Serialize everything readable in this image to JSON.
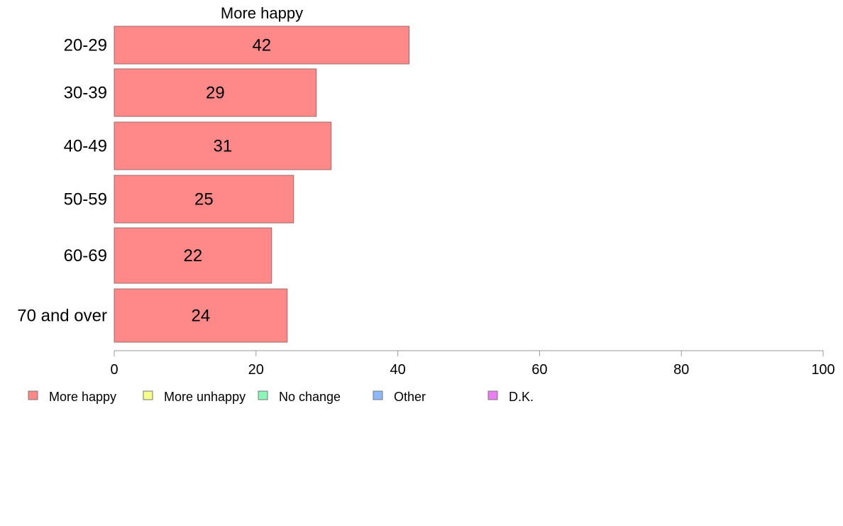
{
  "chart_data": {
    "type": "bar",
    "orientation": "horizontal",
    "panel_title": "More happy",
    "categories": [
      "20-29",
      "30-39",
      "40-49",
      "50-59",
      "60-69",
      "70 and over"
    ],
    "series": [
      {
        "name": "More happy",
        "values": [
          41.6,
          28.5,
          30.6,
          25.3,
          22.2,
          24.4
        ],
        "labels": [
          "42",
          "29",
          "31",
          "25",
          "22",
          "24"
        ]
      }
    ],
    "xlim": [
      0,
      100
    ],
    "xticks": [
      0,
      20,
      40,
      60,
      80,
      100
    ],
    "grid": false,
    "legend_position": "bottom",
    "legend": [
      {
        "label": "More happy",
        "color": "#ff8989"
      },
      {
        "label": "More unhappy",
        "color": "#f5ff8c"
      },
      {
        "label": "No change",
        "color": "#8cf5b8"
      },
      {
        "label": "Other",
        "color": "#8cb8ff"
      },
      {
        "label": "D.K.",
        "color": "#e97ff2"
      }
    ],
    "colors": {
      "bar_fill": "#ff8989",
      "bar_stroke": "#9a6a6a",
      "axis": "#999999"
    }
  }
}
